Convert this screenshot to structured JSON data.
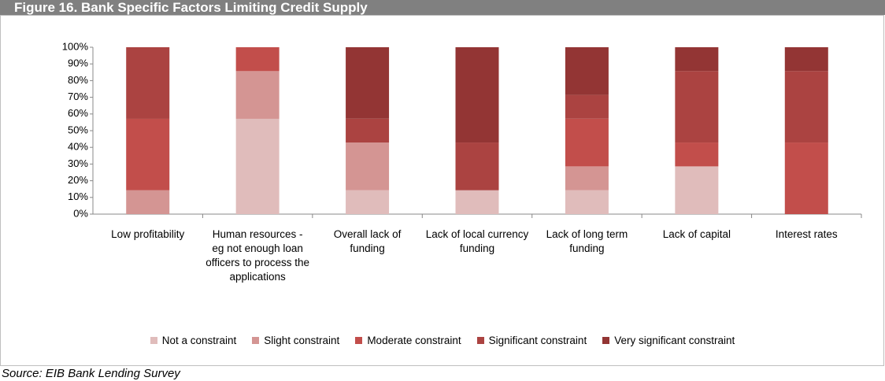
{
  "chart_data": {
    "type": "stacked-bar",
    "title": "Figure 16. Bank Specific Factors Limiting Credit Supply",
    "source": "Source: EIB Bank Lending Survey",
    "categories": [
      "Low profitability",
      "Human resources - eg not enough loan officers to process the applications",
      "Overall lack of funding",
      "Lack of local currency funding",
      "Lack of long term funding",
      "Lack of capital",
      "Interest rates"
    ],
    "series": [
      {
        "name": "Not a constraint",
        "color": "#e0bcbb",
        "values": [
          0,
          57.1,
          14.3,
          14.3,
          14.3,
          28.6,
          0
        ]
      },
      {
        "name": "Slight constraint",
        "color": "#d49593",
        "values": [
          14.3,
          28.6,
          28.6,
          0,
          14.3,
          0,
          0
        ]
      },
      {
        "name": "Moderate constraint",
        "color": "#c24e4b",
        "values": [
          42.8,
          14.3,
          0,
          0,
          28.6,
          14.3,
          42.9
        ]
      },
      {
        "name": "Significant constraint",
        "color": "#ab4341",
        "values": [
          42.9,
          0,
          14.3,
          28.6,
          14.2,
          42.8,
          42.8
        ]
      },
      {
        "name": "Very significant constraint",
        "color": "#933534",
        "values": [
          0,
          0,
          42.8,
          57.1,
          28.6,
          14.3,
          14.3
        ]
      }
    ],
    "ylim": [
      0,
      100
    ],
    "yticks": [
      {
        "value": 0,
        "label": "0%"
      },
      {
        "value": 10,
        "label": "10%"
      },
      {
        "value": 20,
        "label": "20%"
      },
      {
        "value": 30,
        "label": "30%"
      },
      {
        "value": 40,
        "label": "40%"
      },
      {
        "value": 50,
        "label": "50%"
      },
      {
        "value": 60,
        "label": "60%"
      },
      {
        "value": 70,
        "label": "70%"
      },
      {
        "value": 80,
        "label": "80%"
      },
      {
        "value": 90,
        "label": "90%"
      },
      {
        "value": 100,
        "label": "100%"
      }
    ]
  }
}
